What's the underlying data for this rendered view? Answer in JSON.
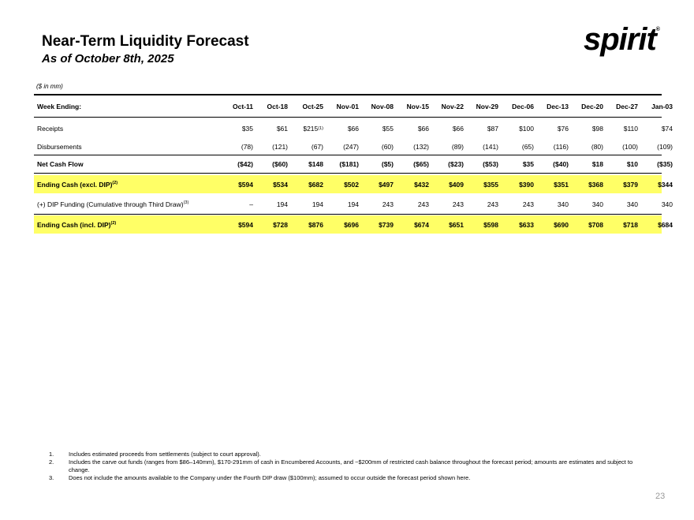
{
  "header": {
    "title": "Near-Term Liquidity Forecast",
    "subtitle": "As of October 8th, 2025",
    "logo_text": "spirit",
    "logo_mark": "®"
  },
  "table": {
    "units_label": "($ in mm)",
    "header_label": "Week Ending:",
    "columns": [
      "Oct-11",
      "Oct-18",
      "Oct-25",
      "Nov-01",
      "Nov-08",
      "Nov-15",
      "Nov-22",
      "Nov-29",
      "Dec-06",
      "Dec-13",
      "Dec-20",
      "Dec-27",
      "Jan-03"
    ],
    "rows": {
      "receipts": {
        "label": "Receipts",
        "values": [
          "$35",
          "$61",
          "$215",
          "$66",
          "$55",
          "$66",
          "$66",
          "$87",
          "$100",
          "$76",
          "$98",
          "$110",
          "$74"
        ],
        "oct25_footnote": "(1)"
      },
      "disbursements": {
        "label": "Disbursements",
        "values": [
          "(78)",
          "(121)",
          "(67)",
          "(247)",
          "(60)",
          "(132)",
          "(89)",
          "(141)",
          "(65)",
          "(116)",
          "(80)",
          "(100)",
          "(109)"
        ]
      },
      "net_cash_flow": {
        "label": "Net Cash Flow",
        "values": [
          "($42)",
          "($60)",
          "$148",
          "($181)",
          "($5)",
          "($65)",
          "($23)",
          "($53)",
          "$35",
          "($40)",
          "$18",
          "$10",
          "($35)"
        ]
      },
      "ending_cash_excl": {
        "label": "Ending Cash (excl. DIP)",
        "footnote": "(2)",
        "values": [
          "$594",
          "$534",
          "$682",
          "$502",
          "$497",
          "$432",
          "$409",
          "$355",
          "$390",
          "$351",
          "$368",
          "$379",
          "$344"
        ]
      },
      "dip_funding": {
        "label": "(+) DIP Funding (Cumulative through Third Draw)",
        "footnote": "(3)",
        "values": [
          "–",
          "194",
          "194",
          "194",
          "243",
          "243",
          "243",
          "243",
          "243",
          "340",
          "340",
          "340",
          "340"
        ]
      },
      "ending_cash_incl": {
        "label": "Ending Cash (incl. DIP)",
        "footnote": "(2)",
        "values": [
          "$594",
          "$728",
          "$876",
          "$696",
          "$739",
          "$674",
          "$651",
          "$598",
          "$633",
          "$690",
          "$708",
          "$718",
          "$684"
        ]
      }
    }
  },
  "footnotes": [
    {
      "num": "1.",
      "text": "Includes estimated proceeds from settlements (subject to court approval)."
    },
    {
      "num": "2.",
      "text": "Includes the carve out funds (ranges from $86–140mm), $170-291mm of cash in Encumbered Accounts, and ~$200mm of restricted cash balance throughout the forecast period; amounts are estimates and subject to change."
    },
    {
      "num": "3.",
      "text": "Does not include the amounts available to the Company under the Fourth DIP draw ($100mm); assumed to occur outside the forecast period shown here."
    }
  ],
  "page_number": "23"
}
